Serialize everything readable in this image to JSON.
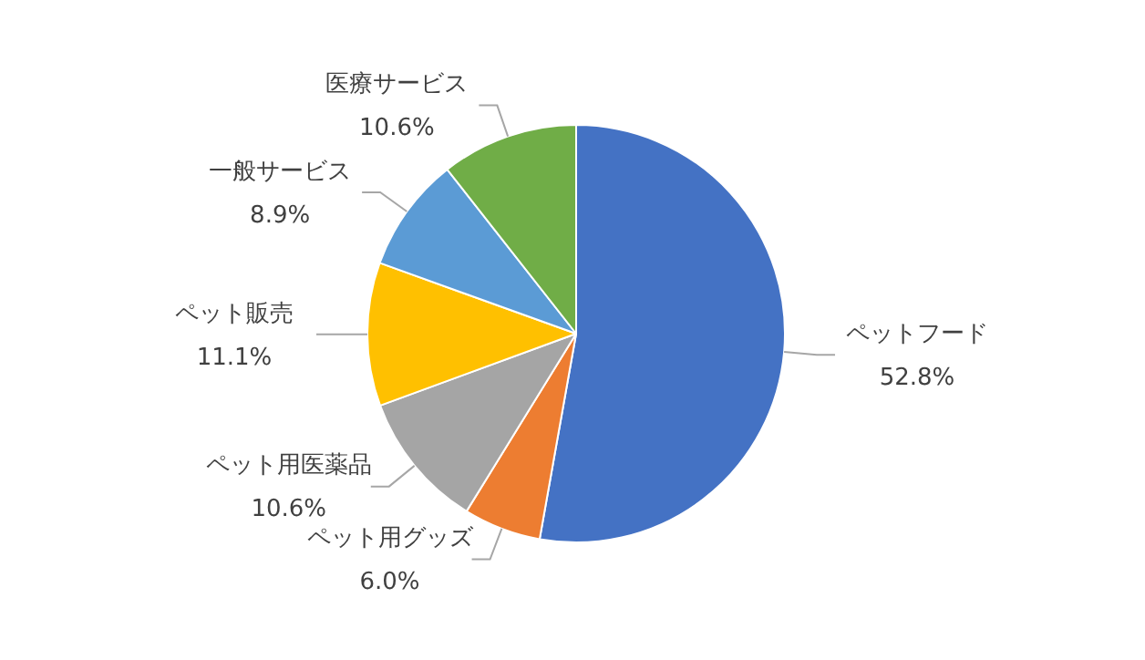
{
  "chart_data": {
    "type": "pie",
    "categories": [
      "ペットフード",
      "ペット用グッズ",
      "ペット用医薬品",
      "ペット販売",
      "一般サービス",
      "医療サービス"
    ],
    "values": [
      52.8,
      6.0,
      10.6,
      11.1,
      8.9,
      10.6
    ],
    "value_labels": [
      "52.8%",
      "6.0%",
      "10.6%",
      "11.1%",
      "8.9%",
      "10.6%"
    ],
    "colors": [
      "#4472c4",
      "#ed7d31",
      "#a5a5a5",
      "#ffc000",
      "#5b9bd5",
      "#70ad47"
    ],
    "legend": false
  }
}
